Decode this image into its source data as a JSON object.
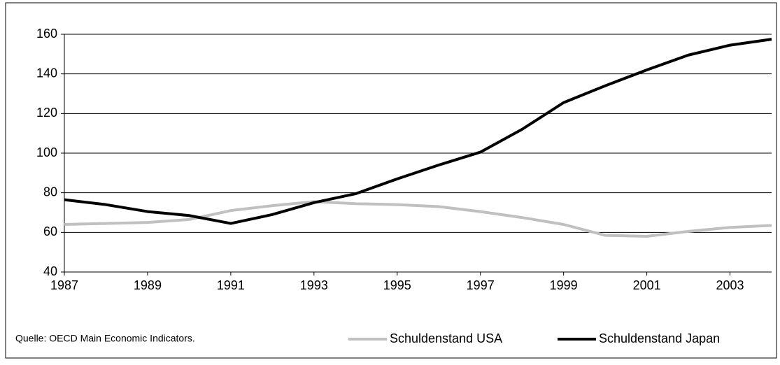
{
  "chart_data": {
    "type": "line",
    "source": "Quelle: OECD Main Economic Indicators.",
    "x": [
      1987,
      1988,
      1989,
      1990,
      1991,
      1992,
      1993,
      1994,
      1995,
      1996,
      1997,
      1998,
      1999,
      2000,
      2001,
      2002,
      2003,
      2004
    ],
    "series": [
      {
        "name": "Schuldenstand USA",
        "color": "#c0c0c0",
        "values": [
          64,
          64.5,
          65,
          66.5,
          71,
          73.5,
          75.5,
          74.5,
          74,
          73,
          70.5,
          67.5,
          64,
          58.5,
          58,
          60.5,
          62.5,
          63.5
        ]
      },
      {
        "name": "Schuldenstand Japan",
        "color": "#000000",
        "values": [
          76.5,
          74,
          70.5,
          68.5,
          64.5,
          69,
          75,
          79.5,
          87,
          94,
          100.5,
          112,
          125.5,
          134,
          142,
          149.5,
          154.5,
          157.5
        ]
      }
    ],
    "xlim": [
      1987,
      2004
    ],
    "xticks": [
      1987,
      1989,
      1991,
      1993,
      1995,
      1997,
      1999,
      2001,
      2003
    ],
    "ylim": [
      40,
      160
    ],
    "yticks": [
      40,
      60,
      80,
      100,
      120,
      140,
      160
    ],
    "grid": true,
    "legend": "bottom-right"
  }
}
